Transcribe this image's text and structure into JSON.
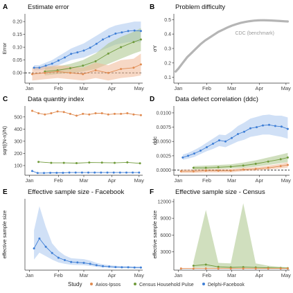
{
  "colors": {
    "axios": "#e08a4f",
    "census": "#6f9a3a",
    "delphi": "#3f7fd6",
    "axios_fill": "#f0b896",
    "census_fill": "#a9c488",
    "delphi_fill": "#a9c6ee",
    "benchmark": "#b5b5b5"
  },
  "legend": {
    "title": "Study",
    "items": [
      {
        "key": "axios",
        "label": "Axios-Ipsos"
      },
      {
        "key": "census",
        "label": "Census Household Pulse"
      },
      {
        "key": "delphi",
        "label": "Delphi-Facebook"
      }
    ]
  },
  "chart_data": [
    {
      "panel": "A",
      "type": "line",
      "title": "Estimate error",
      "xlabel": "",
      "ylabel": "Error",
      "x_ticks": [
        "Jan",
        "Feb",
        "Mar",
        "Apr",
        "May"
      ],
      "y_ticks": [
        "0.00",
        "0.05",
        "0.10",
        "0.15",
        "0.20"
      ],
      "xlim": [
        0,
        130
      ],
      "ylim": [
        -0.04,
        0.23
      ],
      "reference_line": 0,
      "series": [
        {
          "key": "delphi",
          "x": [
            10,
            16,
            23,
            30,
            37,
            44,
            51,
            58,
            65,
            72,
            79,
            86,
            93,
            100,
            107,
            114,
            121,
            128
          ],
          "y": [
            0.02,
            0.02,
            0.028,
            0.036,
            0.048,
            0.06,
            0.074,
            0.08,
            0.087,
            0.098,
            0.113,
            0.13,
            0.142,
            0.153,
            0.158,
            0.163,
            0.165,
            0.163
          ],
          "lo": [
            0.01,
            0.01,
            0.015,
            0.02,
            0.03,
            0.04,
            0.05,
            0.055,
            0.06,
            0.07,
            0.08,
            0.09,
            0.1,
            0.11,
            0.115,
            0.12,
            0.12,
            0.12
          ],
          "hi": [
            0.03,
            0.03,
            0.04,
            0.05,
            0.065,
            0.08,
            0.095,
            0.105,
            0.115,
            0.13,
            0.145,
            0.16,
            0.175,
            0.185,
            0.19,
            0.195,
            0.2,
            0.2
          ]
        },
        {
          "key": "census",
          "x": [
            22,
            36,
            50,
            64,
            78,
            92,
            106,
            120,
            128
          ],
          "y": [
            0.005,
            0.01,
            0.018,
            0.028,
            0.045,
            0.075,
            0.1,
            0.12,
            0.13
          ],
          "lo": [
            -0.01,
            -0.005,
            0.0,
            0.005,
            0.015,
            0.035,
            0.055,
            0.075,
            0.085
          ],
          "hi": [
            0.02,
            0.025,
            0.035,
            0.05,
            0.075,
            0.115,
            0.14,
            0.16,
            0.175
          ]
        },
        {
          "key": "axios",
          "x": [
            8,
            22,
            36,
            50,
            64,
            78,
            92,
            106,
            120,
            128
          ],
          "y": [
            -0.005,
            0.0,
            0.005,
            0.0,
            -0.005,
            0.01,
            0.0,
            0.015,
            0.02,
            0.033
          ],
          "lo": [
            -0.03,
            -0.025,
            -0.02,
            -0.025,
            -0.03,
            -0.02,
            -0.03,
            -0.02,
            -0.015,
            -0.01
          ],
          "hi": [
            0.02,
            0.025,
            0.03,
            0.025,
            0.02,
            0.04,
            0.03,
            0.05,
            0.055,
            0.075
          ]
        }
      ]
    },
    {
      "panel": "B",
      "type": "line",
      "title": "Problem difficulty",
      "xlabel": "",
      "ylabel": "σY",
      "x_ticks": [
        "Jan",
        "Feb",
        "Mar",
        "Apr",
        "May"
      ],
      "y_ticks": [
        "0.1",
        "0.2",
        "0.3",
        "0.4",
        "0.5"
      ],
      "xlim": [
        0,
        130
      ],
      "ylim": [
        0.06,
        0.54
      ],
      "annotation": "CDC (benchmark)",
      "series": [
        {
          "key": "benchmark",
          "x": [
            2,
            5,
            10,
            15,
            20,
            25,
            30,
            35,
            40,
            45,
            50,
            55,
            60,
            65,
            70,
            75,
            80,
            85,
            90,
            95,
            100,
            105,
            110,
            115,
            120,
            125,
            128
          ],
          "y": [
            0.14,
            0.16,
            0.2,
            0.24,
            0.27,
            0.3,
            0.33,
            0.355,
            0.375,
            0.395,
            0.415,
            0.43,
            0.445,
            0.458,
            0.468,
            0.477,
            0.484,
            0.489,
            0.493,
            0.495,
            0.496,
            0.495,
            0.494,
            0.492,
            0.49,
            0.488,
            0.487
          ]
        }
      ]
    },
    {
      "panel": "C",
      "type": "line",
      "title": "Data quantity index",
      "xlabel": "",
      "ylabel": "sqrt((N-n)/N)",
      "x_ticks": [
        "Jan",
        "Feb",
        "Mar",
        "Apr",
        "May"
      ],
      "y_ticks": [
        "100",
        "200",
        "300",
        "400",
        "500"
      ],
      "xlim": [
        0,
        130
      ],
      "ylim": [
        20,
        590
      ],
      "series": [
        {
          "key": "axios",
          "x": [
            8,
            15,
            22,
            29,
            36,
            43,
            50,
            57,
            64,
            71,
            78,
            85,
            92,
            99,
            106,
            113,
            120,
            128
          ],
          "y": [
            550,
            530,
            520,
            530,
            545,
            540,
            525,
            510,
            525,
            520,
            530,
            530,
            520,
            525,
            525,
            530,
            520,
            515
          ]
        },
        {
          "key": "census",
          "x": [
            15,
            29,
            43,
            57,
            71,
            85,
            99,
            113,
            127
          ],
          "y": [
            130,
            122,
            122,
            120,
            125,
            124,
            122,
            126,
            118
          ]
        },
        {
          "key": "delphi",
          "x": [
            8,
            14,
            21,
            28,
            35,
            42,
            49,
            56,
            63,
            70,
            77,
            84,
            91,
            98,
            105,
            112,
            119,
            126
          ],
          "y": [
            55,
            38,
            38,
            40,
            40,
            40,
            42,
            42,
            42,
            42,
            42,
            42,
            42,
            42,
            42,
            42,
            42,
            42
          ]
        }
      ]
    },
    {
      "panel": "D",
      "type": "line",
      "title": "Data defect correlation (ddc)",
      "xlabel": "",
      "ylabel": "ddc",
      "x_ticks": [
        "Jan",
        "Feb",
        "Mar",
        "Apr",
        "May"
      ],
      "y_ticks": [
        "0.0000",
        "0.0025",
        "0.0050",
        "0.0075",
        "0.0100"
      ],
      "xlim": [
        0,
        130
      ],
      "ylim": [
        -0.0009,
        0.0112
      ],
      "reference_line": 0,
      "series": [
        {
          "key": "delphi",
          "x": [
            10,
            16,
            23,
            30,
            37,
            44,
            51,
            58,
            65,
            72,
            79,
            86,
            93,
            100,
            107,
            114,
            121,
            128
          ],
          "y": [
            0.0022,
            0.0025,
            0.0029,
            0.0034,
            0.004,
            0.0046,
            0.0052,
            0.005,
            0.0056,
            0.0063,
            0.0067,
            0.0073,
            0.0075,
            0.0078,
            0.0079,
            0.0077,
            0.0076,
            0.0072
          ],
          "lo": [
            0.0018,
            0.002,
            0.0023,
            0.0028,
            0.0033,
            0.0037,
            0.0042,
            0.004,
            0.0045,
            0.005,
            0.0053,
            0.0058,
            0.006,
            0.0062,
            0.0062,
            0.006,
            0.0058,
            0.0055
          ],
          "hi": [
            0.0027,
            0.003,
            0.0035,
            0.0041,
            0.0048,
            0.0055,
            0.0062,
            0.0061,
            0.0068,
            0.0077,
            0.0083,
            0.009,
            0.0093,
            0.0096,
            0.0097,
            0.0095,
            0.0095,
            0.0092
          ]
        },
        {
          "key": "census",
          "x": [
            22,
            36,
            50,
            64,
            78,
            92,
            106,
            120,
            128
          ],
          "y": [
            0.0004,
            0.0004,
            0.0005,
            0.0006,
            0.0008,
            0.0011,
            0.0015,
            0.0019,
            0.0022
          ],
          "lo": [
            0.0001,
            0.0001,
            0.0002,
            0.0003,
            0.0004,
            0.0006,
            0.0009,
            0.0012,
            0.0014
          ],
          "hi": [
            0.0007,
            0.0008,
            0.0009,
            0.001,
            0.0013,
            0.0017,
            0.0022,
            0.0027,
            0.003
          ]
        },
        {
          "key": "axios",
          "x": [
            8,
            22,
            36,
            50,
            64,
            78,
            92,
            106,
            120,
            128
          ],
          "y": [
            -0.0002,
            -0.0002,
            -0.0001,
            -0.0001,
            -0.0001,
            0.0001,
            0.0002,
            0.0004,
            0.0007,
            0.0009
          ],
          "lo": [
            -0.0005,
            -0.0005,
            -0.0004,
            -0.0004,
            -0.0004,
            -0.0002,
            -0.0001,
            0.0001,
            0.0003,
            0.0004
          ],
          "hi": [
            0.0001,
            0.0001,
            0.0002,
            0.0002,
            0.0002,
            0.0004,
            0.0005,
            0.0008,
            0.0011,
            0.0014
          ]
        }
      ]
    },
    {
      "panel": "E",
      "type": "line",
      "title": "Effective sample size - Facebook",
      "xlabel": "",
      "ylabel": "effective sample size",
      "x_ticks": [
        "Jan",
        "Feb",
        "Mar",
        "Apr",
        "May"
      ],
      "y_ticks": [],
      "xlim": [
        0,
        130
      ],
      "ylim": [
        -5,
        300
      ],
      "series": [
        {
          "key": "delphi",
          "x": [
            10,
            16,
            23,
            30,
            37,
            44,
            51,
            58,
            65,
            72,
            79,
            86,
            93,
            100,
            107,
            114,
            121,
            128
          ],
          "y": [
            88,
            130,
            95,
            68,
            48,
            38,
            30,
            28,
            26,
            22,
            16,
            12,
            10,
            8,
            7,
            7,
            6,
            6
          ],
          "lo": [
            40,
            70,
            55,
            40,
            28,
            22,
            18,
            17,
            16,
            13,
            9,
            6,
            5,
            4,
            4,
            4,
            3,
            3
          ],
          "hi": [
            165,
            268,
            180,
            110,
            78,
            58,
            46,
            44,
            42,
            36,
            26,
            20,
            16,
            14,
            12,
            12,
            11,
            11
          ]
        }
      ]
    },
    {
      "panel": "F",
      "type": "line",
      "title": "Effective sample size - Census",
      "xlabel": "",
      "ylabel": "effective sample size",
      "x_ticks": [
        "Jan",
        "Feb",
        "Mar",
        "Apr",
        "May"
      ],
      "y_ticks": [
        "3000",
        "6000",
        "9000",
        "12000"
      ],
      "xlim": [
        0,
        130
      ],
      "ylim": [
        -300,
        12500
      ],
      "series": [
        {
          "key": "census",
          "x": [
            22,
            36,
            50,
            64,
            78,
            92,
            106,
            120,
            128
          ],
          "y": [
            500,
            700,
            300,
            200,
            250,
            180,
            120,
            80,
            60
          ],
          "lo": [
            100,
            150,
            60,
            40,
            50,
            30,
            20,
            10,
            10
          ],
          "hi": [
            1200,
            10500,
            1000,
            900,
            11700,
            900,
            500,
            300,
            200
          ]
        },
        {
          "key": "axios",
          "x": [
            8,
            22,
            36,
            50,
            64,
            78,
            92,
            106,
            120,
            128
          ],
          "y": [
            0,
            0,
            0,
            0,
            0,
            0,
            0,
            0,
            0,
            0
          ],
          "lo": [
            0,
            0,
            0,
            0,
            0,
            0,
            0,
            0,
            0,
            0
          ],
          "hi": [
            0,
            0,
            0,
            0,
            0,
            0,
            0,
            0,
            0,
            0
          ]
        }
      ]
    }
  ]
}
